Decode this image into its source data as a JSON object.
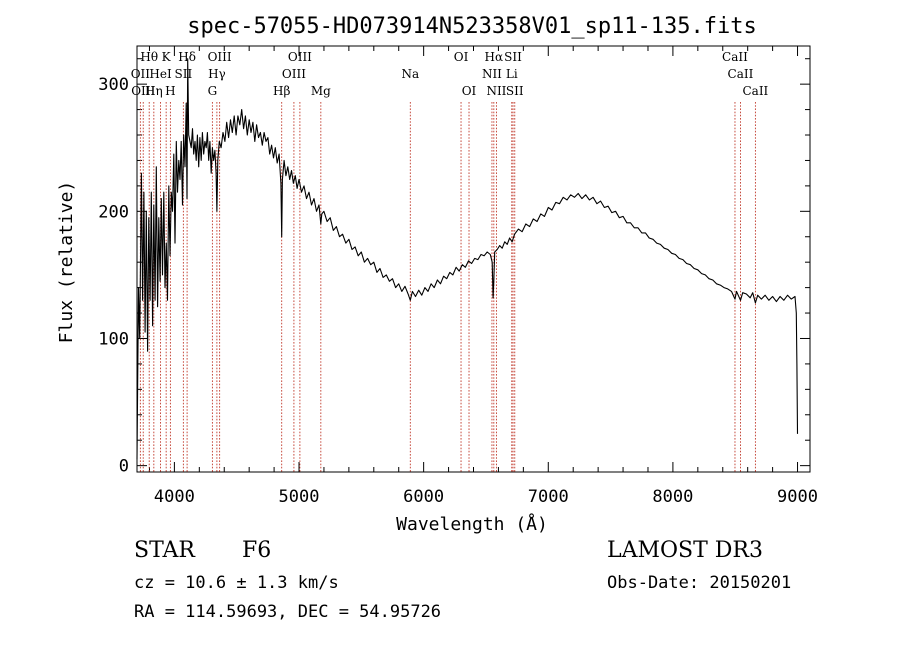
{
  "chart_data": {
    "type": "line",
    "title": "spec-57055-HD073914N523358V01_sp11-135.fits",
    "xlabel": "Wavelength (Å)",
    "ylabel": "Flux (relative)",
    "xlim": [
      3700,
      9100
    ],
    "ylim": [
      -5,
      330
    ],
    "xticks": [
      4000,
      5000,
      6000,
      7000,
      8000,
      9000
    ],
    "yticks": [
      0,
      100,
      200,
      300
    ],
    "x_minor_step": 200,
    "y_minor_step": 20,
    "series": [
      {
        "name": "flux",
        "points": [
          [
            3700,
            5
          ],
          [
            3712,
            140
          ],
          [
            3722,
            100
          ],
          [
            3735,
            230
          ],
          [
            3745,
            130
          ],
          [
            3755,
            215
          ],
          [
            3765,
            105
          ],
          [
            3775,
            200
          ],
          [
            3785,
            90
          ],
          [
            3795,
            195
          ],
          [
            3805,
            130
          ],
          [
            3815,
            215
          ],
          [
            3825,
            110
          ],
          [
            3835,
            205
          ],
          [
            3845,
            130
          ],
          [
            3855,
            235
          ],
          [
            3865,
            125
          ],
          [
            3875,
            195
          ],
          [
            3885,
            145
          ],
          [
            3895,
            210
          ],
          [
            3905,
            150
          ],
          [
            3915,
            215
          ],
          [
            3925,
            140
          ],
          [
            3935,
            175
          ],
          [
            3945,
            130
          ],
          [
            3955,
            220
          ],
          [
            3965,
            165
          ],
          [
            3975,
            215
          ],
          [
            3985,
            200
          ],
          [
            3995,
            245
          ],
          [
            4005,
            175
          ],
          [
            4015,
            255
          ],
          [
            4025,
            215
          ],
          [
            4035,
            240
          ],
          [
            4045,
            225
          ],
          [
            4055,
            255
          ],
          [
            4065,
            205
          ],
          [
            4075,
            260
          ],
          [
            4085,
            235
          ],
          [
            4095,
            285
          ],
          [
            4101,
            210
          ],
          [
            4107,
            320
          ],
          [
            4115,
            260
          ],
          [
            4125,
            255
          ],
          [
            4135,
            250
          ],
          [
            4145,
            265
          ],
          [
            4155,
            245
          ],
          [
            4165,
            255
          ],
          [
            4175,
            240
          ],
          [
            4185,
            260
          ],
          [
            4195,
            235
          ],
          [
            4205,
            258
          ],
          [
            4215,
            240
          ],
          [
            4225,
            262
          ],
          [
            4235,
            245
          ],
          [
            4245,
            255
          ],
          [
            4255,
            250
          ],
          [
            4265,
            262
          ],
          [
            4275,
            240
          ],
          [
            4285,
            255
          ],
          [
            4295,
            230
          ],
          [
            4305,
            250
          ],
          [
            4315,
            240
          ],
          [
            4325,
            248
          ],
          [
            4335,
            230
          ],
          [
            4341,
            200
          ],
          [
            4348,
            240
          ],
          [
            4360,
            255
          ],
          [
            4375,
            250
          ],
          [
            4390,
            262
          ],
          [
            4405,
            255
          ],
          [
            4420,
            270
          ],
          [
            4435,
            258
          ],
          [
            4450,
            272
          ],
          [
            4465,
            262
          ],
          [
            4480,
            275
          ],
          [
            4495,
            260
          ],
          [
            4510,
            275
          ],
          [
            4525,
            268
          ],
          [
            4540,
            280
          ],
          [
            4555,
            265
          ],
          [
            4570,
            275
          ],
          [
            4585,
            260
          ],
          [
            4600,
            272
          ],
          [
            4615,
            262
          ],
          [
            4630,
            270
          ],
          [
            4645,
            255
          ],
          [
            4660,
            268
          ],
          [
            4675,
            258
          ],
          [
            4690,
            262
          ],
          [
            4705,
            252
          ],
          [
            4720,
            262
          ],
          [
            4735,
            255
          ],
          [
            4750,
            258
          ],
          [
            4765,
            245
          ],
          [
            4780,
            252
          ],
          [
            4795,
            242
          ],
          [
            4810,
            250
          ],
          [
            4825,
            238
          ],
          [
            4840,
            245
          ],
          [
            4855,
            222
          ],
          [
            4861,
            180
          ],
          [
            4867,
            225
          ],
          [
            4880,
            240
          ],
          [
            4895,
            228
          ],
          [
            4910,
            235
          ],
          [
            4925,
            225
          ],
          [
            4940,
            232
          ],
          [
            4955,
            222
          ],
          [
            4970,
            228
          ],
          [
            4985,
            218
          ],
          [
            5000,
            225
          ],
          [
            5020,
            215
          ],
          [
            5040,
            220
          ],
          [
            5060,
            210
          ],
          [
            5080,
            215
          ],
          [
            5100,
            205
          ],
          [
            5120,
            210
          ],
          [
            5140,
            200
          ],
          [
            5160,
            205
          ],
          [
            5175,
            190
          ],
          [
            5183,
            198
          ],
          [
            5200,
            200
          ],
          [
            5225,
            192
          ],
          [
            5250,
            195
          ],
          [
            5275,
            185
          ],
          [
            5300,
            188
          ],
          [
            5325,
            180
          ],
          [
            5350,
            182
          ],
          [
            5375,
            175
          ],
          [
            5400,
            178
          ],
          [
            5425,
            170
          ],
          [
            5450,
            172
          ],
          [
            5475,
            165
          ],
          [
            5500,
            168
          ],
          [
            5525,
            160
          ],
          [
            5550,
            163
          ],
          [
            5575,
            158
          ],
          [
            5600,
            160
          ],
          [
            5625,
            152
          ],
          [
            5650,
            155
          ],
          [
            5675,
            148
          ],
          [
            5700,
            150
          ],
          [
            5725,
            145
          ],
          [
            5750,
            147
          ],
          [
            5775,
            140
          ],
          [
            5800,
            143
          ],
          [
            5825,
            137
          ],
          [
            5850,
            141
          ],
          [
            5875,
            135
          ],
          [
            5893,
            130
          ],
          [
            5910,
            137
          ],
          [
            5935,
            133
          ],
          [
            5960,
            138
          ],
          [
            5985,
            134
          ],
          [
            6010,
            140
          ],
          [
            6035,
            137
          ],
          [
            6060,
            143
          ],
          [
            6085,
            140
          ],
          [
            6110,
            146
          ],
          [
            6135,
            143
          ],
          [
            6160,
            149
          ],
          [
            6185,
            147
          ],
          [
            6210,
            152
          ],
          [
            6235,
            150
          ],
          [
            6260,
            156
          ],
          [
            6285,
            153
          ],
          [
            6310,
            158
          ],
          [
            6335,
            156
          ],
          [
            6360,
            161
          ],
          [
            6385,
            159
          ],
          [
            6410,
            163
          ],
          [
            6435,
            162
          ],
          [
            6460,
            166
          ],
          [
            6485,
            165
          ],
          [
            6510,
            168
          ],
          [
            6535,
            166
          ],
          [
            6550,
            160
          ],
          [
            6557,
            132
          ],
          [
            6563,
            145
          ],
          [
            6570,
            168
          ],
          [
            6590,
            170
          ],
          [
            6610,
            173
          ],
          [
            6630,
            171
          ],
          [
            6650,
            176
          ],
          [
            6670,
            174
          ],
          [
            6690,
            179
          ],
          [
            6710,
            176
          ],
          [
            6730,
            182
          ],
          [
            6760,
            186
          ],
          [
            6790,
            184
          ],
          [
            6820,
            190
          ],
          [
            6850,
            188
          ],
          [
            6880,
            194
          ],
          [
            6910,
            192
          ],
          [
            6940,
            198
          ],
          [
            6970,
            196
          ],
          [
            7000,
            203
          ],
          [
            7030,
            201
          ],
          [
            7060,
            207
          ],
          [
            7090,
            206
          ],
          [
            7120,
            211
          ],
          [
            7150,
            209
          ],
          [
            7180,
            213
          ],
          [
            7210,
            211
          ],
          [
            7240,
            214
          ],
          [
            7270,
            210
          ],
          [
            7300,
            213
          ],
          [
            7330,
            209
          ],
          [
            7360,
            211
          ],
          [
            7390,
            206
          ],
          [
            7420,
            208
          ],
          [
            7450,
            203
          ],
          [
            7480,
            204
          ],
          [
            7510,
            199
          ],
          [
            7540,
            200
          ],
          [
            7570,
            195
          ],
          [
            7600,
            196
          ],
          [
            7630,
            191
          ],
          [
            7660,
            191
          ],
          [
            7690,
            187
          ],
          [
            7720,
            187
          ],
          [
            7750,
            183
          ],
          [
            7780,
            183
          ],
          [
            7810,
            179
          ],
          [
            7840,
            178
          ],
          [
            7870,
            175
          ],
          [
            7900,
            174
          ],
          [
            7930,
            171
          ],
          [
            7960,
            170
          ],
          [
            7990,
            167
          ],
          [
            8020,
            166
          ],
          [
            8050,
            163
          ],
          [
            8080,
            162
          ],
          [
            8110,
            159
          ],
          [
            8140,
            158
          ],
          [
            8170,
            155
          ],
          [
            8200,
            154
          ],
          [
            8230,
            151
          ],
          [
            8260,
            150
          ],
          [
            8290,
            147
          ],
          [
            8320,
            146
          ],
          [
            8350,
            143
          ],
          [
            8380,
            142
          ],
          [
            8410,
            140
          ],
          [
            8440,
            139
          ],
          [
            8470,
            137
          ],
          [
            8498,
            131
          ],
          [
            8510,
            137
          ],
          [
            8542,
            130
          ],
          [
            8560,
            136
          ],
          [
            8590,
            135
          ],
          [
            8620,
            132
          ],
          [
            8640,
            136
          ],
          [
            8662,
            128
          ],
          [
            8680,
            134
          ],
          [
            8710,
            131
          ],
          [
            8740,
            134
          ],
          [
            8770,
            130
          ],
          [
            8800,
            133
          ],
          [
            8830,
            129
          ],
          [
            8860,
            133
          ],
          [
            8890,
            130
          ],
          [
            8920,
            134
          ],
          [
            8950,
            131
          ],
          [
            8980,
            133
          ],
          [
            8990,
            120
          ],
          [
            8995,
            80
          ],
          [
            9000,
            25
          ]
        ]
      }
    ],
    "lines": [
      {
        "wavelength": 3727,
        "label": "OII",
        "row": 2
      },
      {
        "wavelength": 3750,
        "label": "OIII",
        "row": 3
      },
      {
        "wavelength": 3798,
        "label": "Hθ",
        "row": 1
      },
      {
        "wavelength": 3835,
        "label": "Hη",
        "row": 3
      },
      {
        "wavelength": 3889,
        "label": "HeI",
        "row": 2
      },
      {
        "wavelength": 3934,
        "label": "K",
        "row": 1
      },
      {
        "wavelength": 3968,
        "label": "H",
        "row": 3
      },
      {
        "wavelength": 4072,
        "label": "SII",
        "row": 2
      },
      {
        "wavelength": 4102,
        "label": "Hδ",
        "row": 1
      },
      {
        "wavelength": 4305,
        "label": "G",
        "row": 3
      },
      {
        "wavelength": 4341,
        "label": "Hγ",
        "row": 2
      },
      {
        "wavelength": 4363,
        "label": "OIII",
        "row": 1
      },
      {
        "wavelength": 4861,
        "label": "Hβ",
        "row": 3
      },
      {
        "wavelength": 4959,
        "label": "OIII",
        "row": 2
      },
      {
        "wavelength": 5007,
        "label": "OIII",
        "row": 1
      },
      {
        "wavelength": 5175,
        "label": "Mg",
        "row": 3
      },
      {
        "wavelength": 5893,
        "label": "Na",
        "row": 2
      },
      {
        "wavelength": 6300,
        "label": "OI",
        "row": 1
      },
      {
        "wavelength": 6364,
        "label": "OI",
        "row": 3
      },
      {
        "wavelength": 6548,
        "label": "NII",
        "row": 2
      },
      {
        "wavelength": 6563,
        "label": "Hα",
        "row": 1
      },
      {
        "wavelength": 6584,
        "label": "NII",
        "row": 3
      },
      {
        "wavelength": 6707,
        "label": "Li",
        "row": 2
      },
      {
        "wavelength": 6717,
        "label": "SII",
        "row": 1
      },
      {
        "wavelength": 6731,
        "label": "SII",
        "row": 3
      },
      {
        "wavelength": 8498,
        "label": "CaII",
        "row": 1
      },
      {
        "wavelength": 8542,
        "label": "CaII",
        "row": 2
      },
      {
        "wavelength": 8662,
        "label": "CaII",
        "row": 3
      }
    ],
    "colors": {
      "spectrum": "#000000",
      "line_marker": "#c0392b",
      "axis": "#000000"
    }
  },
  "info": {
    "object_class": "STAR",
    "subclass": "F6",
    "survey": "LAMOST DR3",
    "redshift": "cz = 10.6 ± 1.3 km/s",
    "obs_date": "Obs-Date: 20150201",
    "coords": "RA = 114.59693, DEC =  54.95726"
  }
}
